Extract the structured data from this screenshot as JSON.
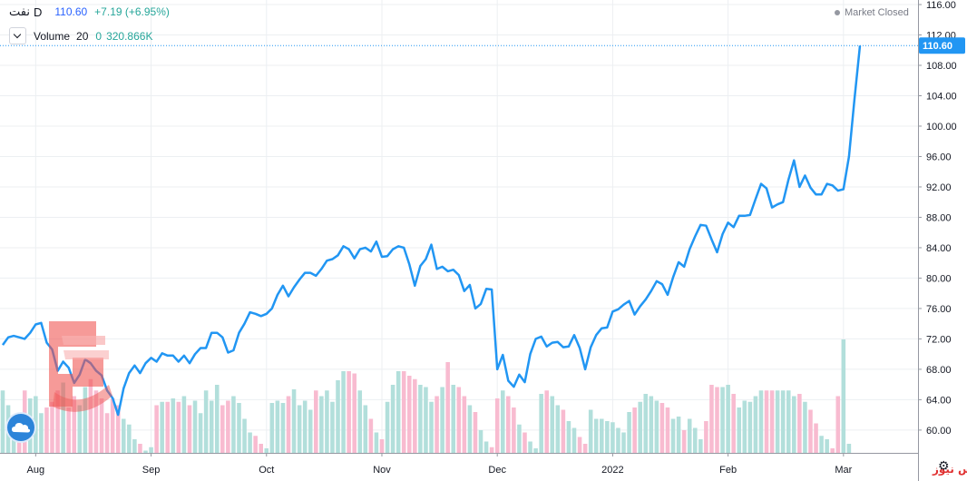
{
  "legend": {
    "symbol": "نفت",
    "interval": "D",
    "price": "110.60",
    "change": "+7.19 (+6.95%)",
    "volume_label": "Volume",
    "volume_length": "20",
    "volume_zero": "0",
    "volume_value": "320.866K"
  },
  "market_status": "Market Closed",
  "brand_text": "بورس نیوز",
  "colors": {
    "line": "#2196f3",
    "up_volume": "#b2dfdb",
    "down_volume": "#f8bbd0",
    "accent_label": "#2196f3",
    "grid": "#eceff2"
  },
  "icons": [
    "chevron-down-icon",
    "settings-icon",
    "tradingview-logo-icon",
    "watermark-logo-icon"
  ],
  "chart_data": {
    "type": "line",
    "x_tick_labels": [
      "Aug",
      "Sep",
      "Oct",
      "Nov",
      "Dec",
      "2022",
      "Feb",
      "Mar"
    ],
    "y_tick_labels": [
      "60.00",
      "64.00",
      "68.00",
      "72.00",
      "76.00",
      "80.00",
      "84.00",
      "88.00",
      "92.00",
      "96.00",
      "100.00",
      "104.00",
      "108.00",
      "112.00",
      "116.00"
    ],
    "ylim": [
      57.0,
      116.6
    ],
    "last_price_label": "110.60",
    "grid": true,
    "series": [
      {
        "kind": "price",
        "values": [
          71.2,
          72.2,
          72.4,
          72.2,
          72.0,
          72.8,
          73.9,
          74.1,
          71.5,
          70.6,
          67.8,
          69.0,
          68.2,
          66.2,
          67.3,
          69.3,
          68.8,
          67.8,
          67.2,
          65.2,
          64.2,
          62.0,
          65.5,
          67.5,
          68.5,
          67.5,
          68.8,
          69.5,
          69.0,
          70.1,
          69.8,
          69.8,
          69.0,
          69.8,
          68.8,
          70.0,
          70.8,
          70.8,
          72.8,
          72.8,
          72.2,
          70.2,
          70.5,
          72.8,
          74.0,
          75.5,
          75.3,
          75.0,
          75.3,
          76.0,
          77.8,
          79.0,
          77.6,
          78.8,
          79.8,
          80.7,
          80.7,
          80.3,
          81.2,
          82.3,
          82.5,
          83.0,
          84.2,
          83.8,
          82.6,
          83.8,
          84.0,
          83.5,
          84.8,
          82.8,
          82.9,
          83.8,
          84.2,
          84.0,
          81.8,
          79.0,
          81.6,
          82.5,
          84.4,
          81.2,
          81.5,
          80.9,
          81.1,
          80.4,
          78.3,
          79.1,
          76.0,
          76.6,
          78.6,
          78.5,
          68.0,
          69.9,
          66.5,
          65.7,
          67.3,
          66.3,
          70.0,
          72.0,
          72.3,
          71.0,
          71.5,
          71.6,
          70.9,
          71.0,
          72.5,
          70.8,
          68.0,
          70.9,
          72.5,
          73.4,
          73.5,
          75.6,
          75.9,
          76.5,
          77.0,
          75.2,
          76.3,
          77.2,
          78.3,
          79.6,
          79.2,
          77.8,
          80.1,
          82.1,
          81.5,
          83.8,
          85.5,
          87.0,
          86.9,
          85.1,
          83.4,
          85.8,
          87.3,
          86.7,
          88.2,
          88.2,
          88.3,
          90.4,
          92.4,
          91.8,
          89.3,
          89.7,
          90.0,
          93.0,
          95.5,
          92.0,
          93.5,
          91.9,
          91.0,
          91.0,
          92.4,
          92.2,
          91.5,
          91.7,
          96.0,
          103.5,
          110.6
        ]
      },
      {
        "kind": "volume",
        "values": [
          0.55,
          0.42,
          0.2,
          0.3,
          0.55,
          0.48,
          0.5,
          0.35,
          0.4,
          0.45,
          0.55,
          0.62,
          0.4,
          0.5,
          0.42,
          0.58,
          0.65,
          0.55,
          0.48,
          0.35,
          0.48,
          0.42,
          0.3,
          0.25,
          0.12,
          0.08,
          0.02,
          0.05,
          0.42,
          0.45,
          0.45,
          0.48,
          0.45,
          0.5,
          0.42,
          0.46,
          0.35,
          0.55,
          0.46,
          0.6,
          0.42,
          0.46,
          0.5,
          0.44,
          0.3,
          0.18,
          0.15,
          0.08,
          0.04,
          0.44,
          0.46,
          0.44,
          0.5,
          0.56,
          0.42,
          0.46,
          0.38,
          0.55,
          0.5,
          0.55,
          0.45,
          0.64,
          0.72,
          0.72,
          0.7,
          0.55,
          0.42,
          0.3,
          0.18,
          0.12,
          0.45,
          0.6,
          0.72,
          0.72,
          0.68,
          0.65,
          0.6,
          0.58,
          0.45,
          0.5,
          0.58,
          0.8,
          0.6,
          0.58,
          0.5,
          0.42,
          0.36,
          0.2,
          0.1,
          0.05,
          0.48,
          0.55,
          0.5,
          0.4,
          0.25,
          0.18,
          0.1,
          0.04,
          0.52,
          0.55,
          0.5,
          0.42,
          0.38,
          0.28,
          0.22,
          0.14,
          0.08,
          0.38,
          0.3,
          0.3,
          0.28,
          0.27,
          0.22,
          0.18,
          0.36,
          0.4,
          0.45,
          0.52,
          0.5,
          0.46,
          0.44,
          0.4,
          0.3,
          0.32,
          0.2,
          0.3,
          0.22,
          0.12,
          0.28,
          0.6,
          0.58,
          0.58,
          0.6,
          0.52,
          0.4,
          0.46,
          0.45,
          0.5,
          0.55,
          0.55,
          0.55,
          0.55,
          0.55,
          0.55,
          0.5,
          0.52,
          0.45,
          0.38,
          0.26,
          0.15,
          0.12,
          0.04,
          0.5,
          1.0,
          0.08
        ]
      }
    ]
  }
}
